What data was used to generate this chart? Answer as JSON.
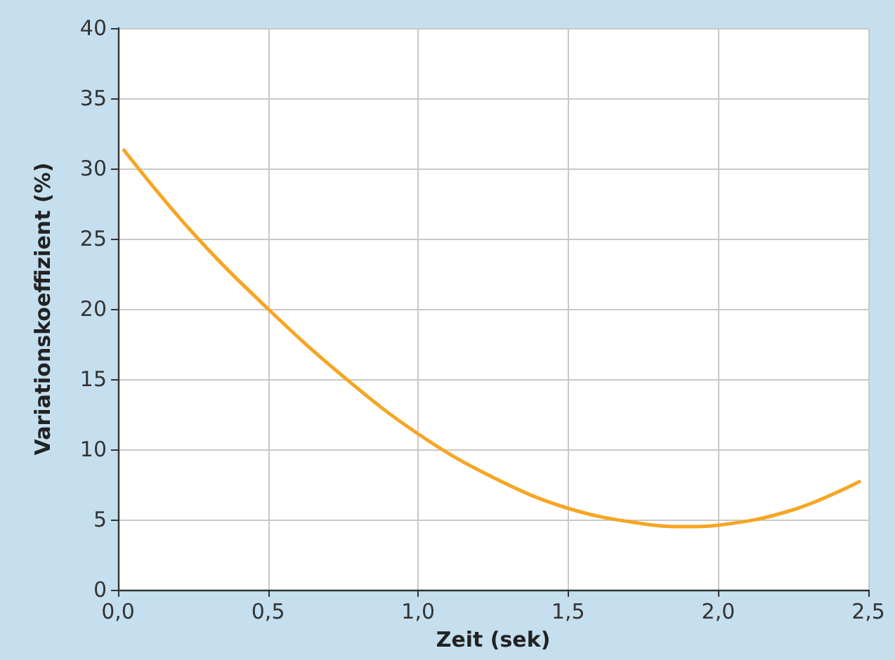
{
  "chart_data": {
    "type": "line",
    "xlabel": "Zeit (sek)",
    "ylabel": "Variationskoeffizient (%)",
    "x": [
      0.02,
      0.25,
      0.5,
      0.75,
      1.0,
      1.25,
      1.5,
      1.75,
      1.9,
      2.0,
      2.25,
      2.47
    ],
    "series": [
      {
        "color": "#f5a623",
        "values": [
          31.3,
          25.4,
          20,
          15.2,
          11.1,
          8.0,
          5.8,
          4.7,
          4.5,
          4.6,
          5.7,
          7.7
        ]
      }
    ],
    "xlim": [
      0,
      2.5
    ],
    "ylim": [
      0,
      40
    ],
    "xticks": [
      {
        "value": 0,
        "label": "0,0"
      },
      {
        "value": 0.5,
        "label": "0,5"
      },
      {
        "value": 1,
        "label": "1,0"
      },
      {
        "value": 1.5,
        "label": "1,5"
      },
      {
        "value": 2,
        "label": "2,0"
      },
      {
        "value": 2.5,
        "label": "2,5"
      }
    ],
    "yticks": [
      0,
      5,
      10,
      15,
      20,
      25,
      30,
      35,
      40
    ],
    "grid": true,
    "marker": "none",
    "line_style": "solid"
  }
}
